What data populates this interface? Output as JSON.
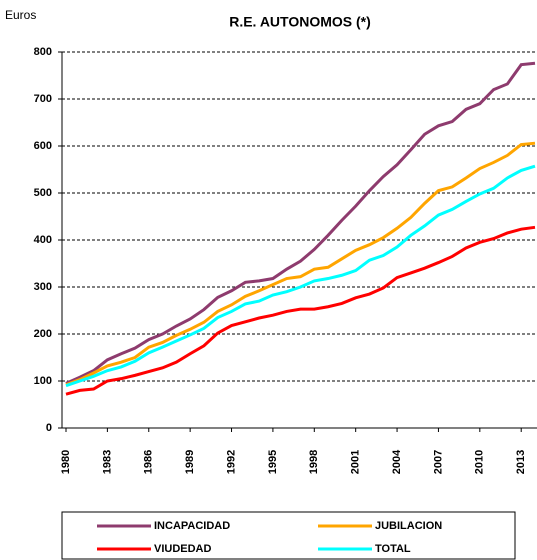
{
  "chart_data": {
    "type": "line",
    "title": "R.E. AUTONOMOS (*)",
    "y_label": "Euros",
    "x": [
      1980,
      1981,
      1982,
      1983,
      1984,
      1985,
      1986,
      1987,
      1988,
      1989,
      1990,
      1991,
      1992,
      1993,
      1994,
      1995,
      1996,
      1997,
      1998,
      1999,
      2000,
      2001,
      2002,
      2003,
      2004,
      2005,
      2006,
      2007,
      2008,
      2009,
      2010,
      2011,
      2012,
      2013,
      2014
    ],
    "xlim": [
      1980,
      2014
    ],
    "xticks": [
      1980,
      1983,
      1986,
      1989,
      1992,
      1995,
      1998,
      2001,
      2004,
      2007,
      2010,
      2013
    ],
    "ylim": [
      0,
      800
    ],
    "yticks": [
      0,
      100,
      200,
      300,
      400,
      500,
      600,
      700,
      800
    ],
    "grid": true,
    "series": [
      {
        "name": "INCAPACIDAD",
        "color": "#8e3b6e",
        "values": [
          95,
          108,
          122,
          145,
          158,
          170,
          188,
          200,
          217,
          232,
          252,
          278,
          292,
          310,
          313,
          318,
          338,
          355,
          380,
          410,
          442,
          472,
          505,
          535,
          560,
          592,
          625,
          643,
          652,
          678,
          690,
          720,
          732,
          773,
          776
        ]
      },
      {
        "name": "JUBILACION",
        "color": "#ffa500",
        "values": [
          92,
          103,
          117,
          132,
          140,
          150,
          172,
          182,
          197,
          210,
          225,
          248,
          262,
          280,
          292,
          305,
          318,
          322,
          338,
          342,
          360,
          378,
          390,
          405,
          425,
          448,
          478,
          505,
          513,
          532,
          552,
          565,
          580,
          603,
          606
        ]
      },
      {
        "name": "VIUDEDAD",
        "color": "#ff0000",
        "values": [
          72,
          80,
          83,
          100,
          105,
          112,
          120,
          128,
          140,
          158,
          175,
          202,
          218,
          226,
          234,
          240,
          248,
          253,
          253,
          258,
          265,
          277,
          285,
          298,
          320,
          330,
          340,
          352,
          365,
          383,
          395,
          403,
          415,
          423,
          427
        ]
      },
      {
        "name": "TOTAL",
        "color": "#00ffff",
        "values": [
          90,
          100,
          110,
          122,
          130,
          142,
          160,
          172,
          185,
          198,
          212,
          235,
          248,
          264,
          270,
          283,
          290,
          300,
          313,
          318,
          325,
          335,
          357,
          367,
          385,
          410,
          430,
          453,
          465,
          482,
          498,
          510,
          532,
          548,
          557
        ]
      }
    ]
  }
}
